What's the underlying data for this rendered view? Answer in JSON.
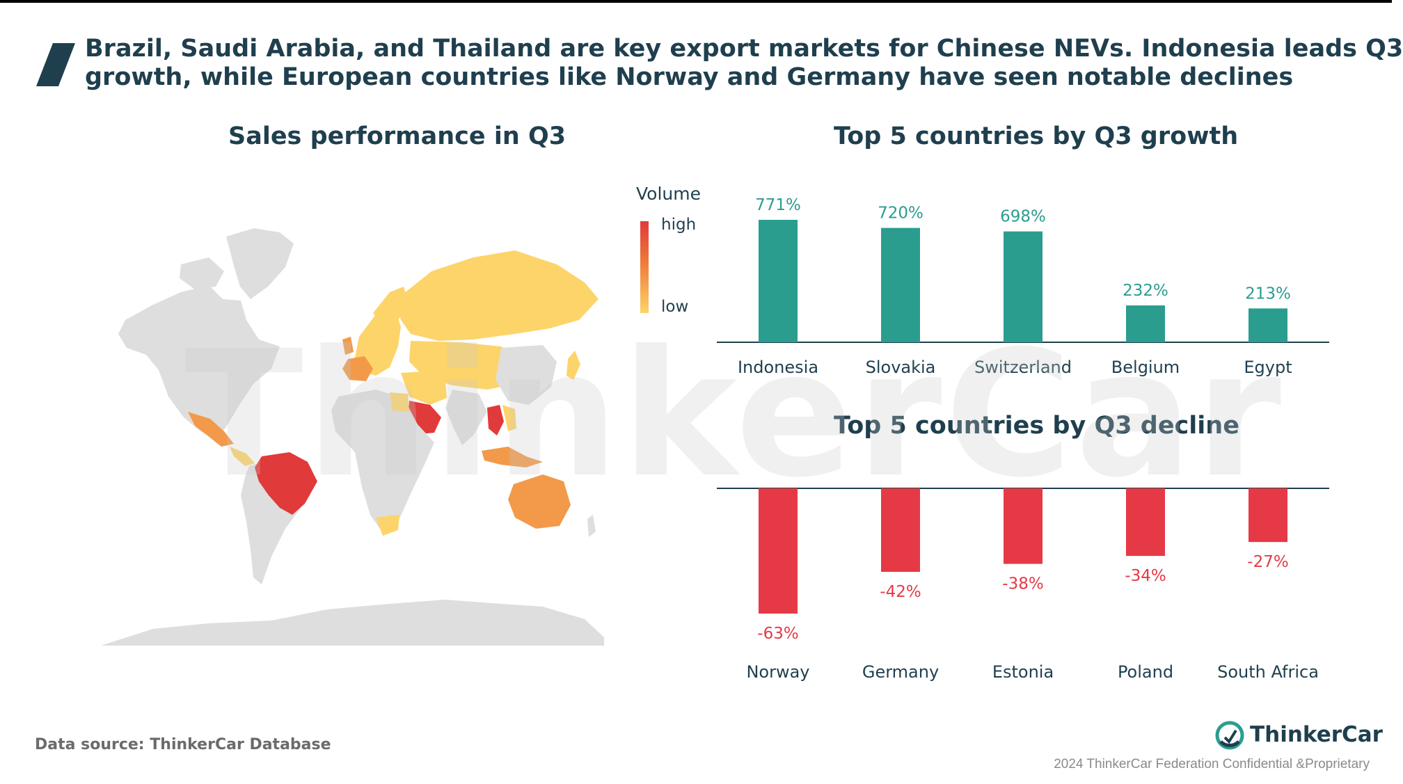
{
  "headline": {
    "line1": "Brazil, Saudi Arabia, and Thailand are key export markets for Chinese NEVs. Indonesia leads Q3",
    "line2": "growth, while European countries like Norway and Germany have seen notable declines"
  },
  "map": {
    "title": "Sales performance  in Q3",
    "legend": {
      "title": "Volume",
      "high_label": "high",
      "low_label": "low"
    },
    "colors": {
      "base": "#dedede",
      "low": "#fdd46a",
      "mid": "#f29a4a",
      "high": "#e03a3a"
    }
  },
  "watermark": "ThinkerCar",
  "footer": {
    "source": "Data source: ThinkerCar Database",
    "brand": "ThinkerCar",
    "confidential": "2024 ThinkerCar Federation Confidential &Proprietary"
  },
  "chart_data": [
    {
      "type": "bar",
      "title": "Top 5 countries by Q3 growth",
      "categories": [
        "Indonesia",
        "Slovakia",
        "Switzerland",
        "Belgium",
        "Egypt"
      ],
      "values": [
        771,
        720,
        698,
        232,
        213
      ],
      "labels": [
        "771%",
        "720%",
        "698%",
        "232%",
        "213%"
      ],
      "unit": "%",
      "ylim": [
        0,
        771
      ],
      "color": "#2a9d8f"
    },
    {
      "type": "bar",
      "title": "Top 5 countries by Q3 decline",
      "categories": [
        "Norway",
        "Germany",
        "Estonia",
        "Poland",
        "South Africa"
      ],
      "values": [
        -63,
        -42,
        -38,
        -34,
        -27
      ],
      "labels": [
        "-63%",
        "-42%",
        "-38%",
        "-34%",
        "-27%"
      ],
      "unit": "%",
      "ylim": [
        -63,
        0
      ],
      "color": "#e63946"
    }
  ]
}
